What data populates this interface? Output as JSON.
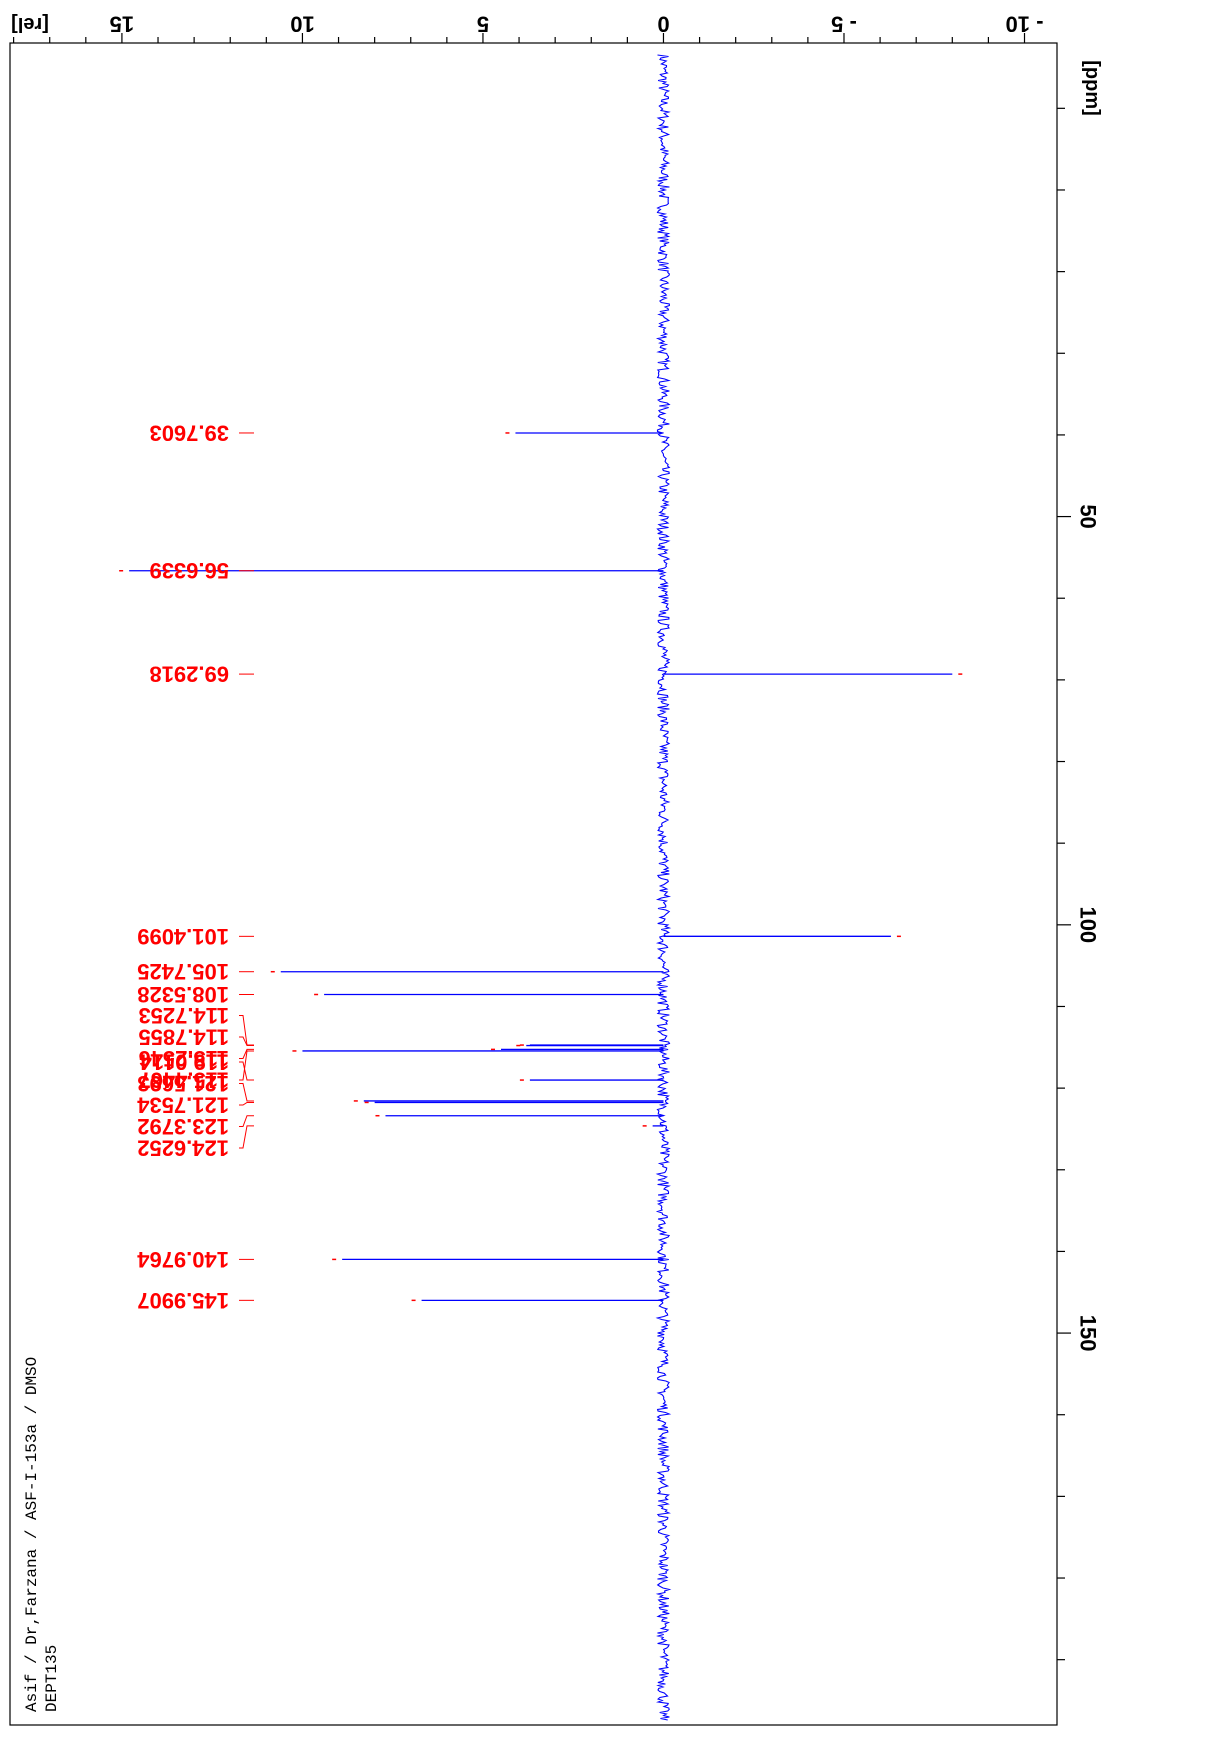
{
  "chart_data": {
    "type": "line",
    "x_unit": "[ppm]",
    "y_unit": "[rel]",
    "x_axis": {
      "range": [
        -8,
        198
      ],
      "ticks": [
        50,
        100,
        150
      ]
    },
    "y_axis": {
      "range": [
        -10.9,
        18.1
      ],
      "ticks": [
        15,
        10,
        5,
        0,
        -5,
        -10
      ],
      "tick_labels": [
        "15",
        "10",
        "5",
        "0",
        "- 5",
        "- 10"
      ]
    },
    "info_lines": [
      "Asif / Dr,Farzana / ASF-I-153a / DMSO",
      "DEPT135"
    ],
    "peaks": [
      {
        "ppm": 39.7603,
        "intensity": 4.1,
        "label": "39.7603"
      },
      {
        "ppm": 56.6339,
        "intensity": 14.8,
        "label": "56.6339"
      },
      {
        "ppm": 69.2918,
        "intensity": -8.0,
        "label": "69.2918"
      },
      {
        "ppm": 101.4099,
        "intensity": -6.3,
        "label": "101.4099"
      },
      {
        "ppm": 105.7425,
        "intensity": 10.6,
        "label": "105.7425"
      },
      {
        "ppm": 108.5328,
        "intensity": 9.4,
        "label": "108.5328"
      },
      {
        "ppm": 114.7253,
        "intensity": 3.7,
        "label": "114.7253"
      },
      {
        "ppm": 114.7855,
        "intensity": 3.8,
        "label": "114.7855"
      },
      {
        "ppm": 115.2546,
        "intensity": 4.5,
        "label": "115.2546"
      },
      {
        "ppm": 115.4467,
        "intensity": 10.0,
        "label": "115.4467"
      },
      {
        "ppm": 119.0114,
        "intensity": 3.7,
        "label": "119.0114"
      },
      {
        "ppm": 121.5693,
        "intensity": 8.3,
        "label": "121.5693"
      },
      {
        "ppm": 121.7534,
        "intensity": 8.0,
        "label": "121.7534"
      },
      {
        "ppm": 123.3792,
        "intensity": 7.7,
        "label": "123.3792"
      },
      {
        "ppm": 124.6252,
        "intensity": 0.3,
        "label": "124.6252"
      },
      {
        "ppm": 140.9764,
        "intensity": 8.9,
        "label": "140.9764"
      },
      {
        "ppm": 145.9907,
        "intensity": 6.7,
        "label": "145.9907"
      }
    ],
    "peak_label_groups": [
      [
        0
      ],
      [
        1
      ],
      [
        2
      ],
      [
        3
      ],
      [
        4
      ],
      [
        5
      ],
      [
        6,
        7,
        8,
        9
      ],
      [
        10,
        11,
        12,
        13,
        14
      ],
      [
        15
      ],
      [
        16
      ]
    ]
  }
}
